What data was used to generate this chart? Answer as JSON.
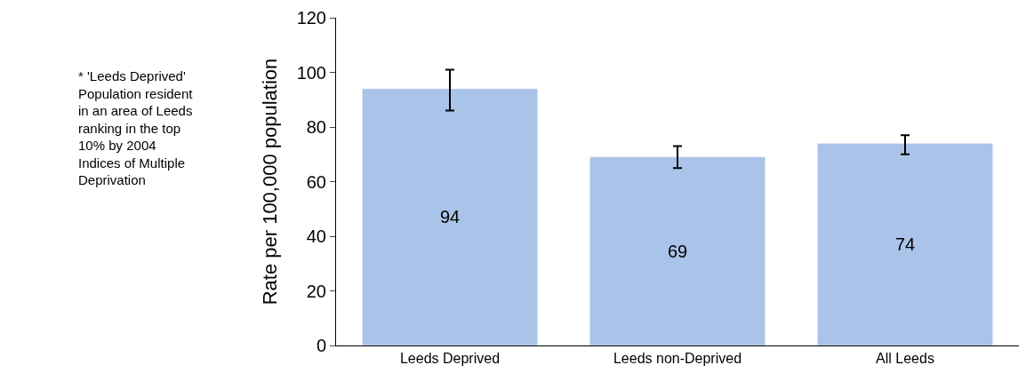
{
  "chart_data": {
    "type": "bar",
    "ylabel": "Rate per 100,000 population",
    "categories": [
      "Leeds Deprived",
      "Leeds non-Deprived",
      "All Leeds"
    ],
    "values": [
      94,
      69,
      74
    ],
    "errors": [
      [
        86,
        101
      ],
      [
        65,
        73
      ],
      [
        70,
        77
      ]
    ],
    "color": "#a9c4e8",
    "ylim": [
      0,
      120
    ],
    "yticks": [
      0,
      20,
      40,
      60,
      80,
      100,
      120
    ],
    "data_labels": true,
    "annotations": [
      "* 'Leeds Deprived'\nPopulation resident\nin an area of Leeds\nranking in the top\n10% by 2004\nIndices of Multiple\nDeprivation"
    ]
  }
}
